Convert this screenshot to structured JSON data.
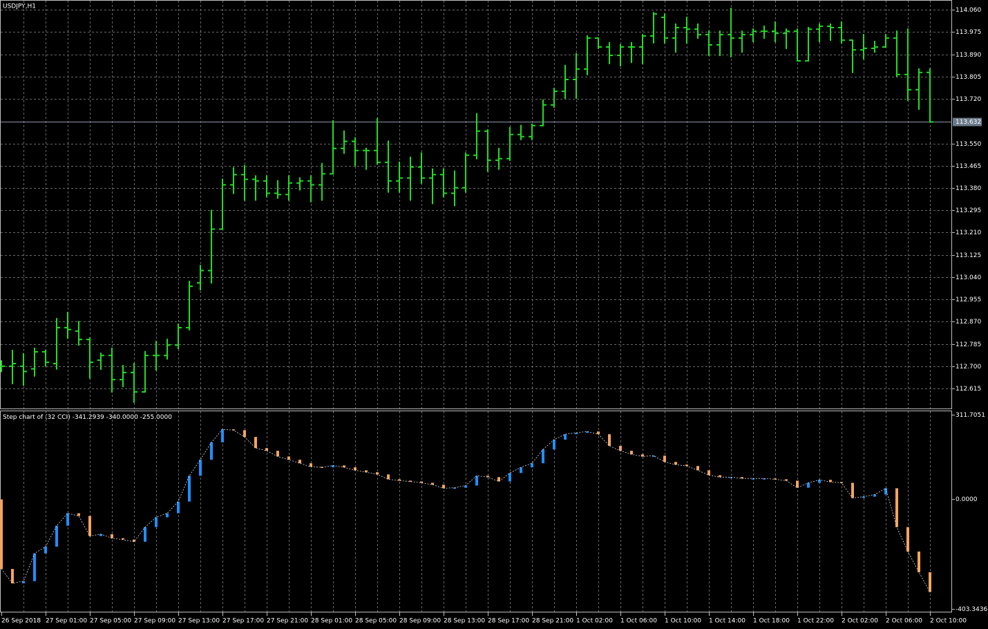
{
  "chart_data": [
    {
      "type": "ohlc",
      "title": "USDJPY,H1",
      "categories": [
        "26 Sep 2018",
        null,
        null,
        null,
        "27 Sep 01:00",
        null,
        null,
        null,
        "27 Sep 05:00",
        null,
        null,
        null,
        "27 Sep 09:00",
        null,
        null,
        null,
        "27 Sep 13:00",
        null,
        null,
        null,
        "27 Sep 17:00",
        null,
        null,
        null,
        "27 Sep 21:00",
        null,
        null,
        null,
        "28 Sep 01:00",
        null,
        null,
        null,
        "28 Sep 05:00",
        null,
        null,
        null,
        "28 Sep 09:00",
        null,
        null,
        null,
        "28 Sep 13:00",
        null,
        null,
        null,
        "28 Sep 17:00",
        null,
        null,
        null,
        "28 Sep 21:00",
        null,
        null,
        null,
        "1 Oct 02:00",
        null,
        null,
        null,
        "1 Oct 06:00",
        null,
        null,
        null,
        "1 Oct 10:00",
        null,
        null,
        null,
        "1 Oct 14:00",
        null,
        null,
        null,
        "1 Oct 18:00",
        null,
        null,
        null,
        "1 Oct 22:00",
        null,
        null,
        null,
        "2 Oct 02:00",
        null,
        null,
        null,
        "2 Oct 06:00",
        null,
        null,
        null,
        "2 Oct 10:00"
      ],
      "open": [
        112.7,
        112.7,
        112.7,
        112.69,
        112.755,
        112.71,
        112.847,
        112.834,
        112.802,
        112.723,
        112.741,
        112.649,
        112.676,
        112.602,
        112.741,
        112.741,
        112.781,
        112.847,
        113.018,
        113.065,
        113.223,
        113.392,
        113.431,
        113.413,
        113.407,
        113.36,
        113.355,
        113.399,
        113.407,
        113.392,
        113.434,
        113.531,
        113.558,
        113.523,
        113.523,
        113.478,
        113.407,
        113.418,
        113.46,
        113.418,
        113.431,
        113.36,
        113.381,
        113.505,
        113.597,
        113.486,
        113.492,
        113.584,
        113.576,
        113.618,
        113.697,
        113.749,
        113.794,
        113.834,
        113.952,
        113.918,
        113.886,
        113.918,
        113.918,
        113.96,
        114.031,
        113.952,
        113.992,
        113.986,
        113.965,
        113.926,
        113.965,
        113.952,
        113.965,
        113.978,
        113.978,
        113.97,
        113.978,
        113.865,
        113.986,
        113.997,
        113.992,
        113.944,
        113.907,
        113.913,
        113.918,
        113.952,
        113.813,
        113.755,
        113.821
      ],
      "high": [
        112.72,
        112.76,
        112.747,
        112.768,
        112.76,
        112.881,
        112.905,
        112.87,
        112.807,
        112.749,
        112.768,
        112.702,
        112.71,
        112.755,
        112.794,
        112.802,
        112.86,
        113.023,
        113.084,
        113.294,
        113.413,
        113.457,
        113.465,
        113.426,
        113.426,
        113.407,
        113.426,
        113.418,
        113.426,
        113.473,
        113.636,
        113.597,
        113.571,
        113.531,
        113.644,
        113.558,
        113.478,
        113.497,
        113.513,
        113.452,
        113.452,
        113.444,
        113.513,
        113.663,
        113.602,
        113.531,
        113.61,
        113.618,
        113.623,
        113.715,
        113.76,
        113.847,
        113.892,
        113.96,
        113.952,
        113.934,
        113.926,
        113.934,
        113.965,
        114.049,
        114.044,
        114.005,
        114.031,
        114.005,
        113.978,
        113.978,
        114.065,
        113.978,
        113.986,
        113.997,
        114.013,
        113.986,
        113.986,
        113.992,
        114.005,
        114.005,
        114.013,
        113.944,
        113.965,
        113.939,
        113.965,
        113.978,
        113.986,
        113.834,
        113.834
      ],
      "low": [
        112.68,
        112.634,
        112.628,
        112.663,
        112.702,
        112.69,
        112.807,
        112.781,
        112.655,
        112.689,
        112.602,
        112.623,
        112.563,
        112.602,
        112.686,
        112.728,
        112.768,
        112.839,
        112.992,
        113.018,
        113.223,
        113.36,
        113.334,
        113.334,
        113.347,
        113.342,
        113.334,
        113.373,
        113.328,
        113.334,
        113.434,
        113.513,
        113.465,
        113.452,
        113.471,
        113.365,
        113.365,
        113.334,
        113.399,
        113.321,
        113.347,
        113.313,
        113.365,
        113.492,
        113.444,
        113.452,
        113.486,
        113.565,
        113.565,
        113.618,
        113.689,
        113.723,
        113.723,
        113.813,
        113.913,
        113.855,
        113.847,
        113.86,
        113.855,
        113.934,
        113.934,
        113.899,
        113.934,
        113.952,
        113.886,
        113.886,
        113.881,
        113.899,
        113.939,
        113.952,
        113.939,
        113.913,
        113.865,
        113.865,
        113.939,
        113.944,
        113.934,
        113.821,
        113.873,
        113.899,
        113.918,
        113.807,
        113.715,
        113.681,
        113.632
      ],
      "close": [
        112.7,
        112.71,
        112.68,
        112.755,
        112.715,
        112.847,
        112.84,
        112.802,
        112.715,
        112.741,
        112.649,
        112.676,
        112.602,
        112.741,
        112.741,
        112.781,
        112.847,
        113.005,
        113.065,
        113.223,
        113.392,
        113.431,
        113.413,
        113.407,
        113.36,
        113.355,
        113.399,
        113.407,
        113.392,
        113.434,
        113.531,
        113.558,
        113.523,
        113.523,
        113.478,
        113.407,
        113.418,
        113.46,
        113.418,
        113.431,
        113.36,
        113.381,
        113.505,
        113.597,
        113.486,
        113.492,
        113.584,
        113.576,
        113.618,
        113.697,
        113.749,
        113.794,
        113.834,
        113.952,
        113.918,
        113.886,
        113.918,
        113.918,
        113.96,
        114.044,
        113.952,
        113.992,
        113.986,
        113.965,
        113.926,
        113.965,
        113.952,
        113.965,
        113.978,
        113.978,
        113.97,
        113.978,
        113.865,
        113.986,
        113.997,
        113.992,
        113.944,
        113.907,
        113.913,
        113.918,
        113.952,
        113.813,
        113.755,
        113.821,
        113.632
      ],
      "color": "#22dd22",
      "ylim": [
        112.536,
        114.092
      ],
      "yticks": [
        {
          "value": 114.06,
          "label": "114.060"
        },
        {
          "value": 113.975,
          "label": "113.975"
        },
        {
          "value": 113.89,
          "label": "113.890"
        },
        {
          "value": 113.805,
          "label": "113.805"
        },
        {
          "value": 113.72,
          "label": "113.720"
        },
        {
          "value": 113.55,
          "label": "113.550"
        },
        {
          "value": 113.465,
          "label": "113.465"
        },
        {
          "value": 113.38,
          "label": "113.380"
        },
        {
          "value": 113.295,
          "label": "113.295"
        },
        {
          "value": 113.21,
          "label": "113.210"
        },
        {
          "value": 113.125,
          "label": "113.125"
        },
        {
          "value": 113.04,
          "label": "113.040"
        },
        {
          "value": 112.955,
          "label": "112.955"
        },
        {
          "value": 112.87,
          "label": "112.870"
        },
        {
          "value": 112.785,
          "label": "112.785"
        },
        {
          "value": 112.7,
          "label": "112.700"
        },
        {
          "value": 112.615,
          "label": "112.615"
        }
      ],
      "grid": true,
      "current_price": {
        "value": 113.632,
        "label": "113.632"
      }
    },
    {
      "type": "step",
      "title": "Step chart of (32 CCI)",
      "readouts": [
        {
          "value": -341.2939,
          "label": "-341.2939"
        },
        {
          "value": -340,
          "label": "-340.0000"
        },
        {
          "value": -255,
          "label": "-255.0000"
        }
      ],
      "values": [
        -256,
        -309,
        -301,
        -199,
        -174,
        -97,
        -51,
        -61,
        -135,
        -128,
        -143,
        -148,
        -156,
        -102,
        -66,
        -51,
        -8,
        87,
        146,
        210,
        258,
        255,
        230,
        189,
        179,
        158,
        146,
        133,
        120,
        118,
        125,
        118,
        107,
        100,
        92,
        74,
        69,
        66,
        61,
        54,
        41,
        43,
        51,
        87,
        82,
        66,
        97,
        118,
        133,
        184,
        220,
        240,
        245,
        250,
        240,
        197,
        179,
        166,
        158,
        161,
        138,
        128,
        123,
        107,
        89,
        82,
        82,
        77,
        77,
        77,
        74,
        69,
        43,
        61,
        72,
        64,
        61,
        5,
        10,
        18,
        41,
        -102,
        -192,
        -268,
        -341.2939
      ],
      "up_color": "#1e90ff",
      "down_color": "#f4a460",
      "ylim": [
        -403.3436,
        311.7051
      ],
      "yticks": [
        {
          "value": 311.7051,
          "label": "311.7051"
        },
        {
          "value": 0,
          "label": "0.0000"
        },
        {
          "value": -403.3436,
          "label": "-403.3436"
        }
      ]
    }
  ]
}
